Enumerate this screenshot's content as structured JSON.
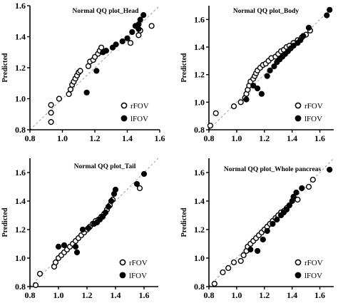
{
  "colors": {
    "axis": "#000000",
    "reference_line": "#9a9a9a",
    "marker": "#000000",
    "background": "#ffffff"
  },
  "chart_data": [
    {
      "id": "head",
      "type": "scatter",
      "title": "Normal QQ plot_Head",
      "xlabel": "",
      "ylabel": "Predicted",
      "xlim": [
        0.8,
        1.6
      ],
      "ylim": [
        0.8,
        1.6
      ],
      "xticks": [
        "0.8",
        "1.0",
        "1.2",
        "1.4",
        "1.6"
      ],
      "yticks": [
        "0.8",
        "1.0",
        "1.2",
        "1.4",
        "1.6"
      ],
      "reference_line": "y = x",
      "legend_position": "bottom-right",
      "series": [
        {
          "name": "rFOV",
          "marker": "open-circle",
          "points": [
            [
              0.93,
              0.85
            ],
            [
              0.93,
              0.91
            ],
            [
              0.93,
              0.96
            ],
            [
              0.98,
              1.0
            ],
            [
              1.04,
              1.03
            ],
            [
              1.05,
              1.06
            ],
            [
              1.06,
              1.09
            ],
            [
              1.07,
              1.11
            ],
            [
              1.08,
              1.13
            ],
            [
              1.09,
              1.15
            ],
            [
              1.1,
              1.17
            ],
            [
              1.11,
              1.18
            ],
            [
              1.16,
              1.21
            ],
            [
              1.17,
              1.24
            ],
            [
              1.19,
              1.25
            ],
            [
              1.2,
              1.27
            ],
            [
              1.22,
              1.29
            ],
            [
              1.23,
              1.31
            ],
            [
              1.24,
              1.33
            ],
            [
              1.42,
              1.36
            ],
            [
              1.47,
              1.41
            ],
            [
              1.48,
              1.44
            ],
            [
              1.55,
              1.47
            ]
          ]
        },
        {
          "name": "lFOV",
          "marker": "filled-circle",
          "points": [
            [
              1.15,
              1.04
            ],
            [
              1.21,
              1.18
            ],
            [
              1.25,
              1.3
            ],
            [
              1.27,
              1.31
            ],
            [
              1.31,
              1.33
            ],
            [
              1.33,
              1.35
            ],
            [
              1.37,
              1.37
            ],
            [
              1.4,
              1.39
            ],
            [
              1.43,
              1.43
            ],
            [
              1.45,
              1.47
            ],
            [
              1.47,
              1.45
            ],
            [
              1.47,
              1.48
            ],
            [
              1.48,
              1.51
            ],
            [
              1.5,
              1.54
            ]
          ]
        }
      ],
      "legend": [
        {
          "label": "rFOV",
          "marker": "open-circle"
        },
        {
          "label": "lFOV",
          "marker": "filled-circle"
        }
      ]
    },
    {
      "id": "body",
      "type": "scatter",
      "title": "Normal QQ plot_Body",
      "xlabel": "",
      "ylabel": "Predicted",
      "xlim": [
        0.8,
        1.7
      ],
      "ylim": [
        0.8,
        1.7
      ],
      "xticks": [
        "0.8",
        "1.0",
        "1.2",
        "1.4",
        "1.6"
      ],
      "yticks": [
        "0.8",
        "1.0",
        "1.2",
        "1.4",
        "1.6"
      ],
      "reference_line": "y = x",
      "legend_position": "bottom-right",
      "series": [
        {
          "name": "rFOV",
          "marker": "open-circle",
          "points": [
            [
              0.81,
              0.83
            ],
            [
              0.85,
              0.92
            ],
            [
              0.98,
              0.97
            ],
            [
              1.03,
              1.0
            ],
            [
              1.06,
              1.03
            ],
            [
              1.07,
              1.06
            ],
            [
              1.08,
              1.09
            ],
            [
              1.09,
              1.12
            ],
            [
              1.1,
              1.15
            ],
            [
              1.12,
              1.17
            ],
            [
              1.13,
              1.19
            ],
            [
              1.14,
              1.21
            ],
            [
              1.15,
              1.23
            ],
            [
              1.17,
              1.25
            ],
            [
              1.19,
              1.27
            ],
            [
              1.21,
              1.28
            ],
            [
              1.23,
              1.3
            ],
            [
              1.25,
              1.32
            ],
            [
              1.28,
              1.33
            ],
            [
              1.3,
              1.35
            ],
            [
              1.32,
              1.37
            ],
            [
              1.34,
              1.38
            ],
            [
              1.36,
              1.4
            ],
            [
              1.38,
              1.41
            ],
            [
              1.41,
              1.43
            ],
            [
              1.44,
              1.45
            ],
            [
              1.47,
              1.47
            ],
            [
              1.5,
              1.49
            ],
            [
              1.53,
              1.52
            ]
          ]
        },
        {
          "name": "lFOV",
          "marker": "filled-circle",
          "points": [
            [
              1.07,
              1.02
            ],
            [
              1.12,
              1.12
            ],
            [
              1.15,
              1.1
            ],
            [
              1.18,
              1.06
            ],
            [
              1.22,
              1.19
            ],
            [
              1.24,
              1.23
            ],
            [
              1.27,
              1.26
            ],
            [
              1.29,
              1.29
            ],
            [
              1.31,
              1.31
            ],
            [
              1.33,
              1.33
            ],
            [
              1.35,
              1.35
            ],
            [
              1.37,
              1.37
            ],
            [
              1.39,
              1.39
            ],
            [
              1.41,
              1.41
            ],
            [
              1.44,
              1.43
            ],
            [
              1.46,
              1.45
            ],
            [
              1.48,
              1.48
            ],
            [
              1.52,
              1.54
            ],
            [
              1.65,
              1.63
            ],
            [
              1.67,
              1.67
            ]
          ]
        }
      ],
      "legend": [
        {
          "label": "rFOV",
          "marker": "open-circle"
        },
        {
          "label": "lFOV",
          "marker": "filled-circle"
        }
      ]
    },
    {
      "id": "tail",
      "type": "scatter",
      "title": "Normal QQ plot_Tail",
      "xlabel": "",
      "ylabel": "Predicted",
      "xlim": [
        0.8,
        1.7
      ],
      "ylim": [
        0.8,
        1.7
      ],
      "xticks": [
        "0.8",
        "1.0",
        "1.2",
        "1.4",
        "1.6"
      ],
      "yticks": [
        "0.8",
        "1.0",
        "1.2",
        "1.4",
        "1.6"
      ],
      "reference_line": "y = x",
      "legend_position": "bottom-right",
      "series": [
        {
          "name": "rFOV",
          "marker": "open-circle",
          "points": [
            [
              0.84,
              0.81
            ],
            [
              0.87,
              0.89
            ],
            [
              0.97,
              0.94
            ],
            [
              0.98,
              0.97
            ],
            [
              1.0,
              1.0
            ],
            [
              1.02,
              1.02
            ],
            [
              1.04,
              1.04
            ],
            [
              1.06,
              1.06
            ],
            [
              1.08,
              1.08
            ],
            [
              1.1,
              1.1
            ],
            [
              1.12,
              1.12
            ],
            [
              1.14,
              1.14
            ],
            [
              1.16,
              1.16
            ],
            [
              1.18,
              1.18
            ],
            [
              1.2,
              1.2
            ],
            [
              1.22,
              1.22
            ],
            [
              1.24,
              1.24
            ],
            [
              1.26,
              1.26
            ],
            [
              1.28,
              1.27
            ],
            [
              1.3,
              1.29
            ],
            [
              1.32,
              1.31
            ],
            [
              1.34,
              1.34
            ],
            [
              1.36,
              1.37
            ],
            [
              1.38,
              1.41
            ],
            [
              1.57,
              1.49
            ]
          ]
        },
        {
          "name": "lFOV",
          "marker": "filled-circle",
          "points": [
            [
              1.0,
              1.08
            ],
            [
              1.04,
              1.09
            ],
            [
              1.12,
              1.08
            ],
            [
              1.13,
              1.04
            ],
            [
              1.17,
              1.2
            ],
            [
              1.21,
              1.21
            ],
            [
              1.25,
              1.24
            ],
            [
              1.27,
              1.25
            ],
            [
              1.29,
              1.27
            ],
            [
              1.31,
              1.29
            ],
            [
              1.33,
              1.32
            ],
            [
              1.35,
              1.36
            ],
            [
              1.37,
              1.4
            ],
            [
              1.39,
              1.45
            ],
            [
              1.4,
              1.48
            ],
            [
              1.55,
              1.52
            ],
            [
              1.6,
              1.59
            ]
          ]
        }
      ],
      "legend": [
        {
          "label": "rFOV",
          "marker": "open-circle"
        },
        {
          "label": "lFOV",
          "marker": "filled-circle"
        }
      ]
    },
    {
      "id": "whole",
      "type": "scatter",
      "title": "Normal QQ plot_Whole pancreas",
      "xlabel": "",
      "ylabel": "Predicted",
      "xlim": [
        0.8,
        1.7
      ],
      "ylim": [
        0.8,
        1.7
      ],
      "xticks": [
        "0.8",
        "1.0",
        "1.2",
        "1.4",
        "1.6"
      ],
      "yticks": [
        "0.8",
        "1.0",
        "1.2",
        "1.4",
        "1.6"
      ],
      "reference_line": "y = x",
      "legend_position": "bottom-right",
      "series": [
        {
          "name": "rFOV",
          "marker": "open-circle",
          "points": [
            [
              0.84,
              0.82
            ],
            [
              0.9,
              0.9
            ],
            [
              0.94,
              0.93
            ],
            [
              0.98,
              0.97
            ],
            [
              1.03,
              0.98
            ],
            [
              1.05,
              1.02
            ],
            [
              1.07,
              1.05
            ],
            [
              1.08,
              1.08
            ],
            [
              1.1,
              1.1
            ],
            [
              1.12,
              1.12
            ],
            [
              1.14,
              1.14
            ],
            [
              1.16,
              1.16
            ],
            [
              1.18,
              1.18
            ],
            [
              1.2,
              1.2
            ],
            [
              1.22,
              1.22
            ],
            [
              1.24,
              1.24
            ],
            [
              1.26,
              1.26
            ],
            [
              1.28,
              1.28
            ],
            [
              1.3,
              1.3
            ],
            [
              1.32,
              1.32
            ],
            [
              1.34,
              1.33
            ],
            [
              1.36,
              1.35
            ],
            [
              1.38,
              1.37
            ],
            [
              1.44,
              1.41
            ],
            [
              1.52,
              1.5
            ],
            [
              1.55,
              1.55
            ]
          ]
        },
        {
          "name": "lFOV",
          "marker": "filled-circle",
          "points": [
            [
              1.1,
              1.06
            ],
            [
              1.15,
              1.05
            ],
            [
              1.19,
              1.13
            ],
            [
              1.22,
              1.19
            ],
            [
              1.26,
              1.24
            ],
            [
              1.29,
              1.27
            ],
            [
              1.32,
              1.3
            ],
            [
              1.34,
              1.32
            ],
            [
              1.36,
              1.34
            ],
            [
              1.38,
              1.37
            ],
            [
              1.4,
              1.4
            ],
            [
              1.41,
              1.43
            ],
            [
              1.43,
              1.46
            ],
            [
              1.47,
              1.49
            ],
            [
              1.67,
              1.62
            ]
          ]
        }
      ],
      "legend": [
        {
          "label": "rFOV",
          "marker": "open-circle"
        },
        {
          "label": "lFOV",
          "marker": "filled-circle"
        }
      ]
    }
  ]
}
